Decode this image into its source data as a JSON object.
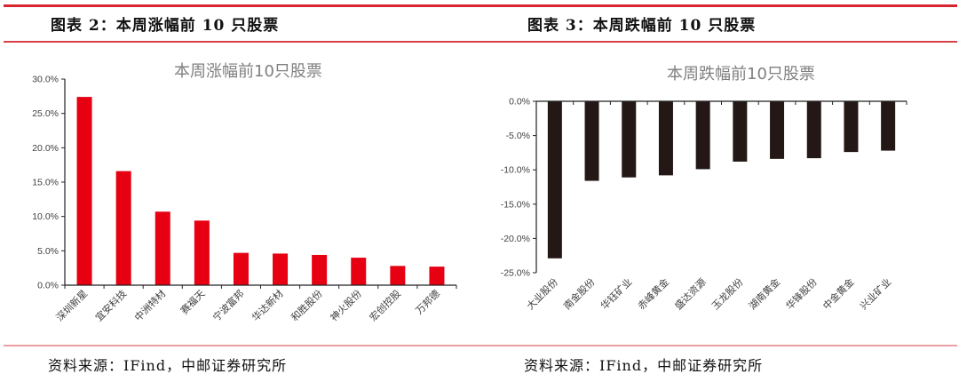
{
  "left_panel": {
    "figure_title": "图表 2：本周涨幅前 10 只股票",
    "chart_title": "本周涨幅前10只股票",
    "source": "资料来源：IFind，中邮证券研究所"
  },
  "right_panel": {
    "figure_title": "图表 3：本周跌幅前 10 只股票",
    "chart_title": "本周跌幅前10只股票",
    "source": "资料来源：IFind，中邮证券研究所"
  },
  "colors": {
    "rise_bar": "#e60012",
    "fall_bar": "#231815",
    "rule": "#d7262f"
  },
  "chart_data": [
    {
      "type": "bar",
      "title": "本周涨幅前10只股票",
      "xlabel": "",
      "ylabel": "",
      "ylim": [
        0,
        30
      ],
      "yticks": [
        "0.0%",
        "5.0%",
        "10.0%",
        "15.0%",
        "20.0%",
        "25.0%",
        "30.0%"
      ],
      "grid": false,
      "legend": false,
      "categories": [
        "深圳新星",
        "宜安科技",
        "中洲特材",
        "赛福天",
        "宁波富邦",
        "华达新材",
        "和胜股份",
        "神火股份",
        "宏创控股",
        "万邦德"
      ],
      "values": [
        27.4,
        16.6,
        10.7,
        9.4,
        4.7,
        4.6,
        4.4,
        4.0,
        2.8,
        2.7
      ],
      "unit": "%"
    },
    {
      "type": "bar",
      "title": "本周跌幅前10只股票",
      "xlabel": "",
      "ylabel": "",
      "ylim": [
        -25,
        0
      ],
      "yticks": [
        "0.0%",
        "-5.0%",
        "-10.0%",
        "-15.0%",
        "-20.0%",
        "-25.0%"
      ],
      "grid": false,
      "legend": false,
      "categories": [
        "大业股份",
        "南金股份",
        "华钰矿业",
        "赤峰黄金",
        "盛达资源",
        "玉龙股份",
        "湖南黄金",
        "华锋股份",
        "中金黄金",
        "兴业矿业"
      ],
      "values": [
        -22.9,
        -11.6,
        -11.1,
        -10.8,
        -9.9,
        -8.8,
        -8.4,
        -8.3,
        -7.4,
        -7.2
      ],
      "unit": "%"
    }
  ]
}
